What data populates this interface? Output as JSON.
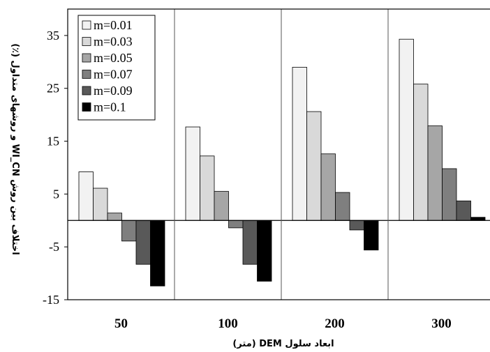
{
  "chart_data": {
    "type": "bar",
    "xlabel": "ابعاد سلول DEM (متر)",
    "ylabel": "اختلاف بین روش WI_CN و روشهای متداول (٪)",
    "categories": [
      "50",
      "100",
      "200",
      "300"
    ],
    "ylim": [
      -15,
      40
    ],
    "yticks": [
      -15,
      -5,
      5,
      15,
      25,
      35
    ],
    "legend_position": "top-left",
    "grid": false,
    "series": [
      {
        "name": "m=0.01",
        "color": "#f2f2f2",
        "values": [
          9.2,
          17.7,
          29,
          34.3
        ]
      },
      {
        "name": "m=0.03",
        "color": "#d9d9d9",
        "values": [
          6.1,
          12.2,
          20.6,
          25.8
        ]
      },
      {
        "name": "m=0.05",
        "color": "#a6a6a6",
        "values": [
          1.4,
          5.5,
          12.6,
          17.9
        ]
      },
      {
        "name": "m=0.07",
        "color": "#7f7f7f",
        "values": [
          -3.9,
          -1.4,
          5.3,
          9.8
        ]
      },
      {
        "name": "m=0.09",
        "color": "#595959",
        "values": [
          -8.3,
          -8.3,
          -1.8,
          3.7
        ]
      },
      {
        "name": "m=0.1",
        "color": "#000000",
        "values": [
          -12.4,
          -11.5,
          -5.6,
          0.6
        ]
      }
    ]
  }
}
